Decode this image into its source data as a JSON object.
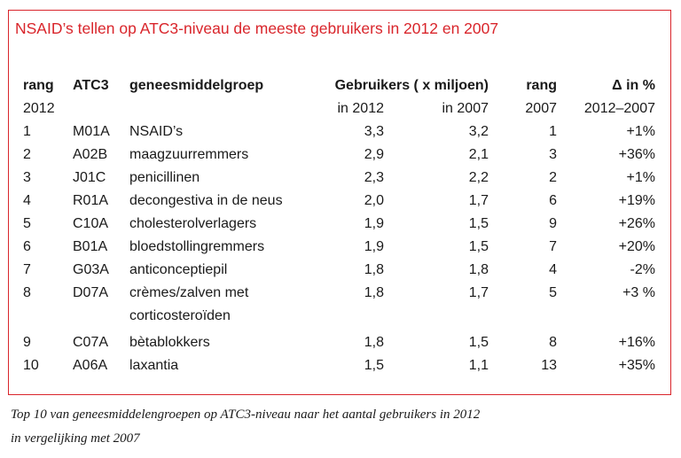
{
  "title": "NSAID’s tellen op ATC3-niveau de meeste gebruikers in 2012 en 2007",
  "header": {
    "rang": "rang",
    "atc3": "ATC3",
    "groep": "geneesmiddelgroep",
    "gebruikers": "Gebruikers ( x miljoen)",
    "rang2": "rang",
    "delta": "Δ in %"
  },
  "subheader": {
    "rang_year": "2012",
    "in2012": "in 2012",
    "in2007": "in 2007",
    "rang2_year": "2007",
    "delta_range": "2012–2007"
  },
  "rows": [
    {
      "rang": "1",
      "atc": "M01A",
      "groep": "NSAID’s",
      "groep2": "",
      "g2012": "3,3",
      "g2007": "3,2",
      "rang2007": "1",
      "delta": "+1%"
    },
    {
      "rang": "2",
      "atc": "A02B",
      "groep": "maagzuurremmers",
      "groep2": "",
      "g2012": "2,9",
      "g2007": "2,1",
      "rang2007": "3",
      "delta": "+36%"
    },
    {
      "rang": "3",
      "atc": "J01C",
      "groep": "penicillinen",
      "groep2": "",
      "g2012": "2,3",
      "g2007": "2,2",
      "rang2007": "2",
      "delta": "+1%"
    },
    {
      "rang": "4",
      "atc": "R01A",
      "groep": "decongestiva in de neus",
      "groep2": "",
      "g2012": "2,0",
      "g2007": "1,7",
      "rang2007": "6",
      "delta": "+19%"
    },
    {
      "rang": "5",
      "atc": "C10A",
      "groep": "cholesterolverlagers",
      "groep2": "",
      "g2012": "1,9",
      "g2007": "1,5",
      "rang2007": "9",
      "delta": "+26%"
    },
    {
      "rang": "6",
      "atc": "B01A",
      "groep": "bloedstollingremmers",
      "groep2": "",
      "g2012": "1,9",
      "g2007": "1,5",
      "rang2007": "7",
      "delta": "+20%"
    },
    {
      "rang": "7",
      "atc": "G03A",
      "groep": "anticonceptiepil",
      "groep2": "",
      "g2012": "1,8",
      "g2007": "1,8",
      "rang2007": "4",
      "delta": "-2%"
    },
    {
      "rang": "8",
      "atc": "D07A",
      "groep": "crèmes/zalven met",
      "groep2": "corticosteroïden",
      "g2012": "1,8",
      "g2007": "1,7",
      "rang2007": "5",
      "delta": "+3 %"
    },
    {
      "rang": "9",
      "atc": "C07A",
      "groep": "bètablokkers",
      "groep2": "",
      "g2012": "1,8",
      "g2007": "1,5",
      "rang2007": "8",
      "delta": "+16%"
    },
    {
      "rang": "10",
      "atc": "A06A",
      "groep": "laxantia",
      "groep2": "",
      "g2012": "1,5",
      "g2007": "1,1",
      "rang2007": "13",
      "delta": "+35%"
    }
  ],
  "caption": {
    "line1": "Top 10 van geneesmiddelengroepen op ATC3-niveau naar het aantal gebruikers in 2012",
    "line2": "in vergelijking met 2007"
  },
  "colors": {
    "accent": "#d9252b",
    "text": "#1a1a1a"
  }
}
